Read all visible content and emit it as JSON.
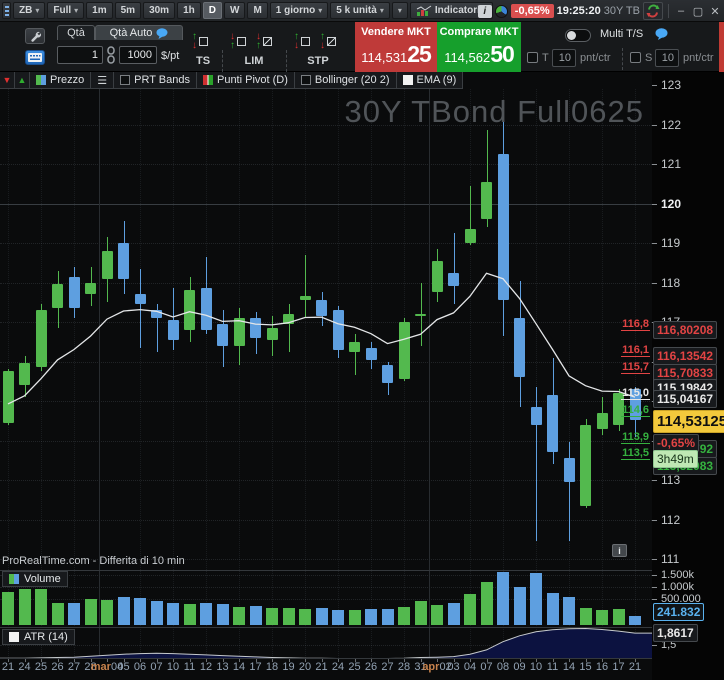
{
  "topbar": {
    "symbol": "ZB",
    "layout": "Full",
    "timeframes": [
      "1m",
      "5m",
      "30m",
      "1h",
      "D",
      "W",
      "M"
    ],
    "active_timeframe": "D",
    "period": "1 giorno",
    "units": "5 k unità",
    "indicators_label": "Indicatori",
    "change_badge": "-0,65%",
    "clock": "19:25:20",
    "window_title": "30Y TB"
  },
  "orderbar": {
    "qty_tab": "Qtà",
    "qty_auto_tab": "Qtà Auto",
    "qty_value": "1",
    "point_value": "1000",
    "point_unit": "$/pt",
    "ts_label": "TS",
    "lim_label": "LIM",
    "stp_label": "STP",
    "sell_label": "Vendere MKT",
    "sell_price_main": "114,531",
    "sell_price_ticks": "25",
    "buy_label": "Comprare MKT",
    "buy_price_main": "114,562",
    "buy_price_ticks": "50",
    "multi_ts_label": "Multi T/S",
    "trail_label": "T",
    "trail_value": "10",
    "stop_label": "S",
    "stop_value": "10",
    "unit_label": "pnt/ctr"
  },
  "legend": {
    "price": "Prezzo",
    "prt_bands": "PRT Bands",
    "pivot": "Punti Pivot (D)",
    "bollinger": "Bollinger (20 2)",
    "ema": "EMA (9)"
  },
  "chart": {
    "watermark": "30Y TBond Full0625",
    "footer_note": "ProRealTime.com - Differita di 10 min",
    "volume_legend": "Volume",
    "atr_legend": "ATR (14)",
    "last_price": "114,53125",
    "change_label": "-0,65%",
    "session_left": "3h49m",
    "ema_value_label": "115,19842",
    "volume_current": "241.832",
    "atr_current": "1,8617",
    "atr_tick": "1,5",
    "volume_ticks": [
      "1.500k",
      "1.000k",
      "500.000"
    ],
    "price_ticks": [
      123,
      122,
      121,
      120,
      119,
      118,
      117,
      116,
      115,
      114,
      113,
      112,
      111
    ],
    "bold_price_tick": 120
  },
  "chart_data": {
    "type": "candlestick",
    "title": "30Y TBond Full0625",
    "ylim": [
      111,
      123
    ],
    "up_color": "#53b94e",
    "down_color": "#5e9fe0",
    "ema_period": 9,
    "panes": [
      "price",
      "volume",
      "atr"
    ],
    "pivot_levels": [
      {
        "name": "R3",
        "short": "116,8",
        "value": "116,80208",
        "price": 116.80208,
        "color": "#e24444"
      },
      {
        "name": "R2",
        "short": "116,1",
        "value": "116,13542",
        "price": 116.13542,
        "color": "#e24444"
      },
      {
        "name": "R1",
        "short": "115,7",
        "value": "115,70833",
        "price": 115.70833,
        "color": "#e24444"
      },
      {
        "name": "P",
        "short": "115,0",
        "value": "115,04167",
        "price": 115.04167,
        "color": "#e8e8e8"
      },
      {
        "name": "S1",
        "short": "114,6",
        "price": 114.61458,
        "color": "#35b13f"
      },
      {
        "name": "S2",
        "short": "113,9",
        "value": "113,94792",
        "price": 113.94792,
        "color": "#35b13f"
      },
      {
        "name": "S3",
        "short": "113,5",
        "value": "113,52083",
        "price": 113.52083,
        "color": "#35b13f"
      }
    ],
    "candles": [
      {
        "d": "21",
        "o": 114.45,
        "h": 115.8,
        "l": 114.4,
        "c": 115.75,
        "v": 870,
        "atr": 1.1
      },
      {
        "d": "24",
        "o": 115.4,
        "h": 116.15,
        "l": 115.1,
        "c": 115.95,
        "v": 950,
        "atr": 1.1
      },
      {
        "d": "25",
        "o": 115.85,
        "h": 117.45,
        "l": 115.75,
        "c": 117.3,
        "v": 950,
        "atr": 1.11
      },
      {
        "d": "26",
        "o": 117.35,
        "h": 118.3,
        "l": 116.85,
        "c": 117.95,
        "v": 580,
        "atr": 1.12
      },
      {
        "d": "27",
        "o": 118.15,
        "h": 118.4,
        "l": 117.1,
        "c": 117.35,
        "v": 590,
        "atr": 1.13
      },
      {
        "d": "28",
        "o": 117.7,
        "h": 118.4,
        "l": 117.4,
        "c": 118.0,
        "v": 690,
        "atr": 1.16
      },
      {
        "d": "mar04",
        "o": 118.1,
        "h": 119.15,
        "l": 117.5,
        "c": 118.8,
        "v": 660,
        "atr": 1.19
      },
      {
        "d": "05",
        "o": 119.0,
        "h": 119.55,
        "l": 117.7,
        "c": 118.1,
        "v": 730,
        "atr": 1.22
      },
      {
        "d": "06",
        "o": 117.7,
        "h": 118.35,
        "l": 116.35,
        "c": 117.45,
        "v": 700,
        "atr": 1.24
      },
      {
        "d": "07",
        "o": 117.3,
        "h": 117.45,
        "l": 116.25,
        "c": 117.1,
        "v": 630,
        "atr": 1.25
      },
      {
        "d": "10",
        "o": 117.05,
        "h": 117.85,
        "l": 116.3,
        "c": 116.55,
        "v": 570,
        "atr": 1.24
      },
      {
        "d": "11",
        "o": 116.8,
        "h": 118.15,
        "l": 116.5,
        "c": 117.8,
        "v": 540,
        "atr": 1.22
      },
      {
        "d": "12",
        "o": 117.85,
        "h": 118.65,
        "l": 116.7,
        "c": 116.8,
        "v": 570,
        "atr": 1.2
      },
      {
        "d": "13",
        "o": 116.95,
        "h": 117.3,
        "l": 115.85,
        "c": 116.4,
        "v": 540,
        "atr": 1.18
      },
      {
        "d": "14",
        "o": 116.4,
        "h": 117.35,
        "l": 115.9,
        "c": 117.1,
        "v": 470,
        "atr": 1.16
      },
      {
        "d": "17",
        "o": 117.1,
        "h": 117.25,
        "l": 116.2,
        "c": 116.6,
        "v": 490,
        "atr": 1.14
      },
      {
        "d": "18",
        "o": 116.55,
        "h": 117.15,
        "l": 116.15,
        "c": 116.85,
        "v": 440,
        "atr": 1.12
      },
      {
        "d": "19",
        "o": 116.95,
        "h": 117.45,
        "l": 116.25,
        "c": 117.2,
        "v": 450,
        "atr": 1.11
      },
      {
        "d": "20",
        "o": 117.55,
        "h": 118.7,
        "l": 117.1,
        "c": 117.65,
        "v": 410,
        "atr": 1.1
      },
      {
        "d": "21",
        "o": 117.55,
        "h": 117.75,
        "l": 116.9,
        "c": 117.15,
        "v": 450,
        "atr": 1.1
      },
      {
        "d": "24",
        "o": 117.3,
        "h": 117.4,
        "l": 116.1,
        "c": 116.3,
        "v": 390,
        "atr": 1.09
      },
      {
        "d": "25",
        "o": 116.25,
        "h": 116.7,
        "l": 115.65,
        "c": 116.5,
        "v": 400,
        "atr": 1.08
      },
      {
        "d": "26",
        "o": 116.35,
        "h": 116.5,
        "l": 115.8,
        "c": 116.05,
        "v": 420,
        "atr": 1.08
      },
      {
        "d": "27",
        "o": 115.9,
        "h": 116.0,
        "l": 115.15,
        "c": 115.45,
        "v": 420,
        "atr": 1.09
      },
      {
        "d": "28",
        "o": 115.55,
        "h": 117.1,
        "l": 115.5,
        "c": 117.0,
        "v": 470,
        "atr": 1.1
      },
      {
        "d": "31",
        "o": 117.15,
        "h": 118.0,
        "l": 116.4,
        "c": 117.2,
        "v": 620,
        "atr": 1.12
      },
      {
        "d": "apr02",
        "o": 117.75,
        "h": 118.85,
        "l": 117.5,
        "c": 118.55,
        "v": 520,
        "atr": 1.13
      },
      {
        "d": "03",
        "o": 118.25,
        "h": 119.25,
        "l": 117.45,
        "c": 117.9,
        "v": 590,
        "atr": 1.15
      },
      {
        "d": "04",
        "o": 119.0,
        "h": 120.45,
        "l": 118.95,
        "c": 119.35,
        "v": 810,
        "atr": 1.22
      },
      {
        "d": "07",
        "o": 119.6,
        "h": 121.85,
        "l": 119.4,
        "c": 120.55,
        "v": 1120,
        "atr": 1.35
      },
      {
        "d": "08",
        "o": 121.25,
        "h": 122.15,
        "l": 116.65,
        "c": 117.55,
        "v": 1390,
        "atr": 1.6
      },
      {
        "d": "09",
        "o": 117.1,
        "h": 118.05,
        "l": 114.85,
        "c": 115.6,
        "v": 990,
        "atr": 1.78
      },
      {
        "d": "10",
        "o": 114.85,
        "h": 115.35,
        "l": 111.45,
        "c": 114.4,
        "v": 1370,
        "atr": 1.9
      },
      {
        "d": "11",
        "o": 115.15,
        "h": 116.1,
        "l": 113.4,
        "c": 113.7,
        "v": 840,
        "atr": 1.96
      },
      {
        "d": "14",
        "o": 113.55,
        "h": 113.95,
        "l": 111.45,
        "c": 112.95,
        "v": 750,
        "atr": 1.99
      },
      {
        "d": "15",
        "o": 112.35,
        "h": 114.55,
        "l": 112.3,
        "c": 114.4,
        "v": 450,
        "atr": 2.0
      },
      {
        "d": "16",
        "o": 114.3,
        "h": 115.1,
        "l": 114.15,
        "c": 114.7,
        "v": 390,
        "atr": 1.97
      },
      {
        "d": "17",
        "o": 114.4,
        "h": 115.3,
        "l": 114.25,
        "c": 115.2,
        "v": 410,
        "atr": 1.92
      },
      {
        "d": "21",
        "o": 115.3,
        "h": 115.35,
        "l": 114.1,
        "c": 114.53,
        "v": 242,
        "atr": 1.8617
      }
    ]
  }
}
